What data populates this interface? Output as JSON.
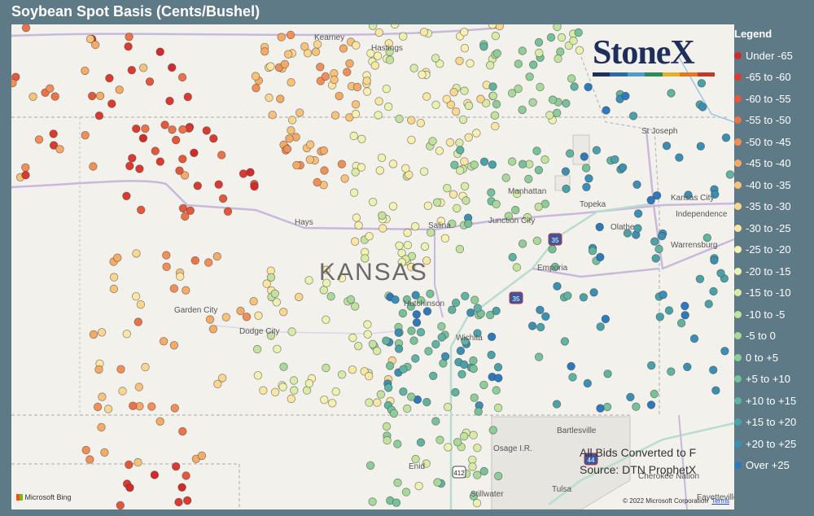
{
  "title": "Soybean Spot Basis (Cents/Bushel)",
  "legend": {
    "title": "Legend",
    "items": [
      {
        "label": "Under -65",
        "color": "#d42a2a"
      },
      {
        "label": "-65 to -60",
        "color": "#dc3a30"
      },
      {
        "label": "-60 to -55",
        "color": "#e5573a"
      },
      {
        "label": "-55 to -50",
        "color": "#ec7347"
      },
      {
        "label": "-50 to -45",
        "color": "#f28f56"
      },
      {
        "label": "-45 to -40",
        "color": "#f5aa66"
      },
      {
        "label": "-40 to -35",
        "color": "#f8c27a"
      },
      {
        "label": "-35 to -30",
        "color": "#fad68f"
      },
      {
        "label": "-30 to -25",
        "color": "#fbe6a3"
      },
      {
        "label": "-25 to -20",
        "color": "#f7f0b0"
      },
      {
        "label": "-20 to -15",
        "color": "#ecf2b0"
      },
      {
        "label": "-15 to -10",
        "color": "#d8eca8"
      },
      {
        "label": "-10 to -5",
        "color": "#c2e3a0"
      },
      {
        "label": "-5 to 0",
        "color": "#a9d99a"
      },
      {
        "label": "0 to +5",
        "color": "#8fcd98"
      },
      {
        "label": "+5 to +10",
        "color": "#76c19a"
      },
      {
        "label": "+10 to +15",
        "color": "#5fb3a0"
      },
      {
        "label": "+15 to +20",
        "color": "#4aa2a8"
      },
      {
        "label": "+20 to +25",
        "color": "#3b8fb4"
      },
      {
        "label": "Over +25",
        "color": "#2d79be"
      }
    ]
  },
  "logo": {
    "text": "StoneX",
    "bar_colors": [
      "#1d2f5a",
      "#2d6aa6",
      "#4f9bd0",
      "#2e8b57",
      "#e0b428",
      "#e07a20",
      "#c0392b"
    ]
  },
  "places": [
    {
      "name": "Kearney"
    },
    {
      "name": "Hastings"
    },
    {
      "name": "St Joseph"
    },
    {
      "name": "Manhattan"
    },
    {
      "name": "Kansas City"
    },
    {
      "name": "Topeka"
    },
    {
      "name": "Independence"
    },
    {
      "name": "Junction City"
    },
    {
      "name": "Salina"
    },
    {
      "name": "Hays"
    },
    {
      "name": "Olathe"
    },
    {
      "name": "Warrensburg"
    },
    {
      "name": "Emporia"
    },
    {
      "name": "Garden City"
    },
    {
      "name": "Hutchinson"
    },
    {
      "name": "Dodge City"
    },
    {
      "name": "Wichita"
    },
    {
      "name": "Bartlesville"
    },
    {
      "name": "Osage I.R."
    },
    {
      "name": "Enid"
    },
    {
      "name": "Cherokee Nation"
    },
    {
      "name": "Stillwater"
    },
    {
      "name": "Tulsa"
    },
    {
      "name": "Fayetteville"
    }
  ],
  "state_label": "KANSAS",
  "highway_shields": [
    "35",
    "35",
    "44",
    "412"
  ],
  "notes": {
    "line1": "All Bids Converted to F",
    "line2": "Source: DTN ProphetX"
  },
  "attribution": {
    "bing": "Microsoft Bing",
    "copyright": "© 2022 Microsoft Corporation",
    "terms": "Terms"
  },
  "markers": {
    "count_shown": 760,
    "note": "basis markers colored by legend bin"
  }
}
